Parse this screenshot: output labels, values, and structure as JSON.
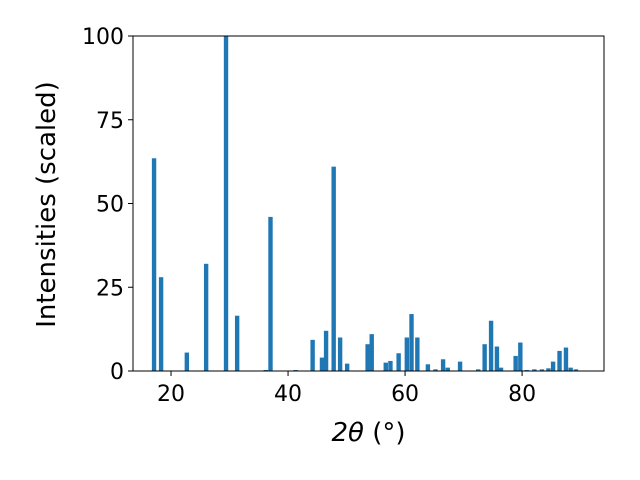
{
  "chart_data": {
    "type": "bar",
    "xlabel_parts": {
      "symbol": "2θ",
      "unit": " (°)"
    },
    "ylabel": "Intensities (scaled)",
    "xlim": [
      13.5,
      94
    ],
    "ylim": [
      0,
      100
    ],
    "xticks": [
      20,
      40,
      60,
      80
    ],
    "yticks": [
      0,
      25,
      50,
      75,
      100
    ],
    "bar_width_deg": 0.75,
    "bar_color": "#1f77b4",
    "x": [
      17.1,
      18.3,
      22.7,
      26.0,
      29.4,
      31.3,
      36.2,
      37.0,
      41.3,
      44.2,
      45.8,
      46.5,
      47.8,
      48.9,
      50.1,
      53.6,
      54.3,
      56.7,
      57.5,
      58.9,
      60.3,
      61.1,
      62.1,
      63.9,
      65.2,
      66.5,
      67.3,
      69.4,
      72.5,
      73.6,
      74.7,
      75.7,
      76.4,
      78.9,
      79.7,
      80.8,
      82.1,
      83.4,
      84.5,
      85.3,
      86.4,
      87.5,
      88.3,
      89.2
    ],
    "values": [
      63.5,
      28,
      5.5,
      32,
      100,
      16.5,
      0.3,
      46,
      0.3,
      9.3,
      4,
      12,
      61,
      10,
      2.2,
      8,
      11,
      2.5,
      3,
      5.3,
      10,
      17,
      10,
      2,
      0.5,
      3.5,
      1,
      2.8,
      0.5,
      8,
      15,
      7.3,
      1,
      4.5,
      8.5,
      0.3,
      0.5,
      0.5,
      0.8,
      2.8,
      6,
      7,
      1,
      0.5
    ]
  }
}
